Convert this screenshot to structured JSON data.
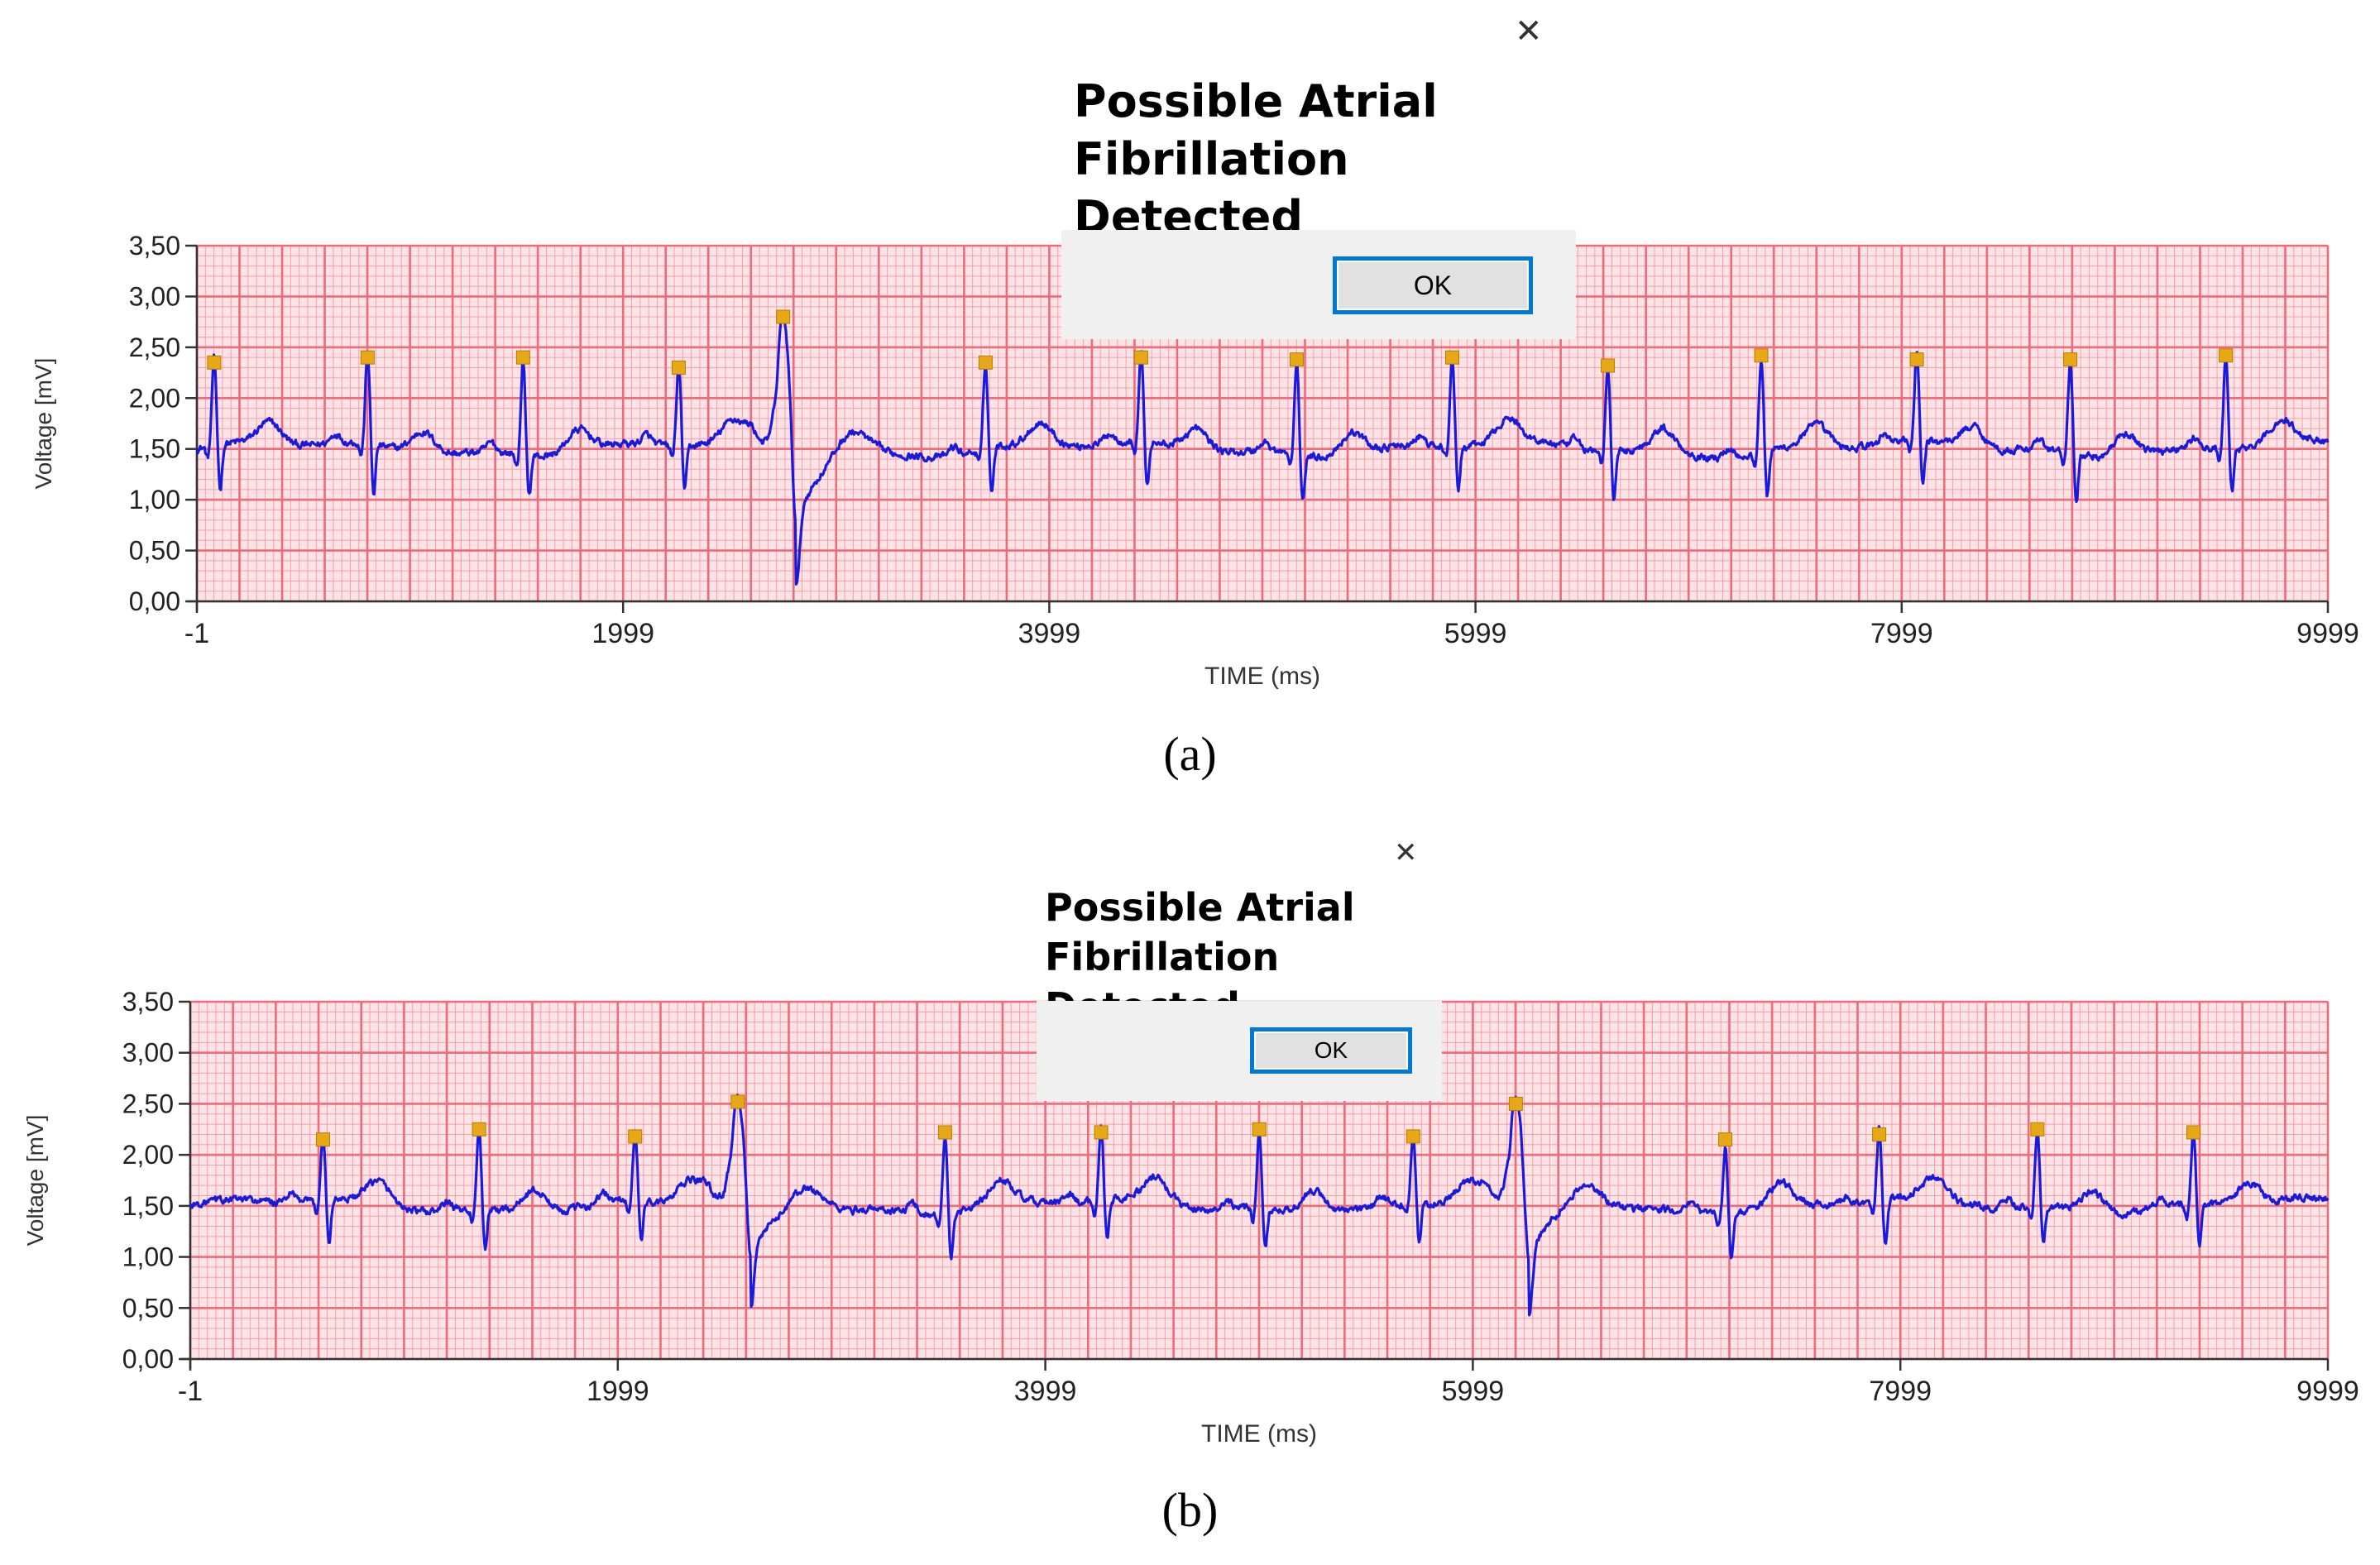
{
  "chart_data": [
    {
      "type": "line",
      "panel": "a",
      "xlabel": "TIME (ms)",
      "ylabel": "Voltage [mV]",
      "xlim": [
        -1,
        9999
      ],
      "ylim": [
        0,
        3.5
      ],
      "x_ticks": [
        -1,
        1999,
        3999,
        5999,
        7999,
        9999
      ],
      "x_tick_labels": [
        "-1",
        "1999",
        "3999",
        "5999",
        "7999",
        "9999"
      ],
      "y_ticks": [
        0,
        0.5,
        1,
        1.5,
        2,
        2.5,
        3,
        3.5
      ],
      "y_tick_labels": [
        "0,00",
        "0,50",
        "1,00",
        "1,50",
        "2,00",
        "2,50",
        "3,00",
        "3,50"
      ],
      "baseline_mV": 1.5,
      "series_name": "ECG",
      "series_color": "#1a1adc",
      "grid_color": "#f06a7a",
      "background_color": "#fbe3e6",
      "r_peaks": [
        {
          "x": 80,
          "y": 2.35,
          "s": 1.05
        },
        {
          "x": 800,
          "y": 2.4,
          "s": 1.0
        },
        {
          "x": 1530,
          "y": 2.4,
          "s": 1.1
        },
        {
          "x": 2260,
          "y": 2.3,
          "s": 1.05
        },
        {
          "x": 2750,
          "y": 2.8,
          "s": 0.65,
          "ectopic": true
        },
        {
          "x": 3700,
          "y": 2.35,
          "s": 1.05
        },
        {
          "x": 4430,
          "y": 2.4,
          "s": 1.05
        },
        {
          "x": 5160,
          "y": 2.38,
          "s": 1.05
        },
        {
          "x": 5890,
          "y": 2.4,
          "s": 1.05
        },
        {
          "x": 6620,
          "y": 2.32,
          "s": 1.0
        },
        {
          "x": 7340,
          "y": 2.42,
          "s": 1.05
        },
        {
          "x": 8070,
          "y": 2.38,
          "s": 1.05
        },
        {
          "x": 8790,
          "y": 2.38,
          "s": 1.0
        },
        {
          "x": 9520,
          "y": 2.42,
          "s": 1.05
        }
      ]
    },
    {
      "type": "line",
      "panel": "b",
      "xlabel": "TIME (ms)",
      "ylabel": "Voltage [mV]",
      "xlim": [
        -1,
        9999
      ],
      "ylim": [
        0,
        3.5
      ],
      "x_ticks": [
        -1,
        1999,
        3999,
        5999,
        7999,
        9999
      ],
      "x_tick_labels": [
        "-1",
        "1999",
        "3999",
        "5999",
        "7999",
        "9999"
      ],
      "y_ticks": [
        0,
        0.5,
        1,
        1.5,
        2,
        2.5,
        3,
        3.5
      ],
      "y_tick_labels": [
        "0,00",
        "0,50",
        "1,00",
        "1,50",
        "2,00",
        "2,50",
        "3,00",
        "3,50"
      ],
      "baseline_mV": 1.5,
      "series_name": "ECG",
      "series_color": "#1a1adc",
      "grid_color": "#f06a7a",
      "background_color": "#fbe3e6",
      "r_peaks": [
        {
          "x": 620,
          "y": 2.15,
          "s": 1.05
        },
        {
          "x": 1350,
          "y": 2.25,
          "s": 1.1
        },
        {
          "x": 2080,
          "y": 2.18,
          "s": 1.1
        },
        {
          "x": 2560,
          "y": 2.52,
          "s": 0.82,
          "ectopic": true
        },
        {
          "x": 3530,
          "y": 2.22,
          "s": 1.05
        },
        {
          "x": 4260,
          "y": 2.22,
          "s": 1.1
        },
        {
          "x": 5000,
          "y": 2.25,
          "s": 1.1
        },
        {
          "x": 5720,
          "y": 2.18,
          "s": 1.1
        },
        {
          "x": 6200,
          "y": 2.5,
          "s": 0.78,
          "ectopic": true
        },
        {
          "x": 7180,
          "y": 2.15,
          "s": 1.05
        },
        {
          "x": 7900,
          "y": 2.2,
          "s": 1.05
        },
        {
          "x": 8640,
          "y": 2.25,
          "s": 1.1
        },
        {
          "x": 9370,
          "y": 2.22,
          "s": 1.1
        }
      ]
    }
  ],
  "dialogs": [
    {
      "message": "Possible Atrial\nFibrillation Detected",
      "ok_label": "OK",
      "close_glyph": "✕"
    },
    {
      "message": "Possible Atrial\nFibrillation Detected",
      "ok_label": "OK",
      "close_glyph": "✕"
    }
  ],
  "captions": [
    "(a)",
    "(b)"
  ],
  "colors": {
    "marker": "#e6a817",
    "dialog_bg": "#f0f0f0",
    "button_border": "#0078d7"
  }
}
